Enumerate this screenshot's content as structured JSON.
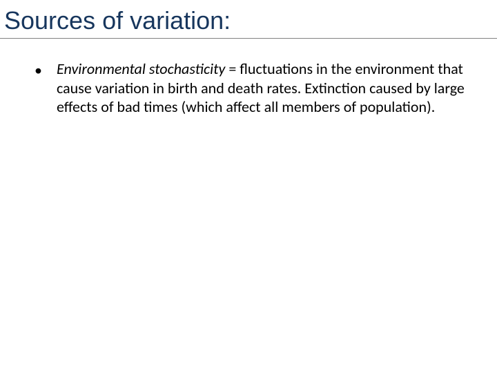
{
  "slide": {
    "title": "Sources of variation:",
    "title_color": "#17365d",
    "title_font": "Comic Sans MS",
    "title_fontsize": 36,
    "underline_color": "#808080",
    "background_color": "#ffffff",
    "bullet": {
      "marker": "•",
      "term": "Environmental stochasticity",
      "rest": " = fluctuations in the environment that cause variation in birth and death rates.  Extinction caused by large effects of bad times (which affect all members of population).",
      "font": "Calibri",
      "fontsize": 22,
      "color": "#000000"
    }
  }
}
